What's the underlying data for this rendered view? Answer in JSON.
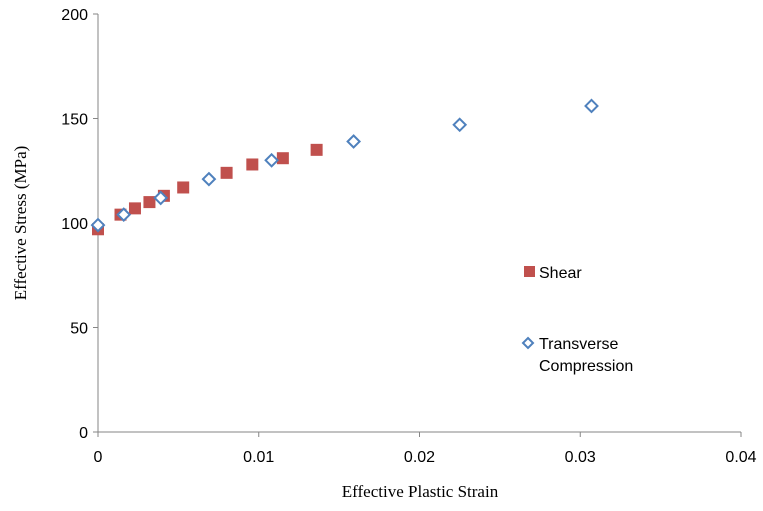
{
  "chart_data": {
    "type": "scatter",
    "x_label": "Effective Plastic Strain",
    "y_label": "Effective Stress (MPa)",
    "xlim": [
      0,
      0.04
    ],
    "xticks": [
      0,
      0.01,
      0.02,
      0.03,
      0.04
    ],
    "ylim": [
      0,
      200
    ],
    "yticks": [
      0,
      50,
      100,
      150,
      200
    ],
    "grid": false,
    "legend": "right",
    "series": [
      {
        "name": "Shear",
        "color": "#c0504d",
        "marker": "square",
        "x": [
          0,
          0.0014,
          0.0023,
          0.0032,
          0.0041,
          0.0053,
          0.008,
          0.0096,
          0.0115,
          0.0136
        ],
        "values": [
          97,
          104,
          107,
          110,
          113,
          117,
          124,
          128,
          131,
          135
        ]
      },
      {
        "name": "Transverse Compression",
        "color": "#4f81bd",
        "marker": "diamond",
        "x": [
          0,
          0.0016,
          0.0039,
          0.0069,
          0.0108,
          0.0159,
          0.0225,
          0.0307
        ],
        "values": [
          99,
          104,
          112,
          121,
          130,
          139,
          147,
          156
        ]
      }
    ]
  }
}
